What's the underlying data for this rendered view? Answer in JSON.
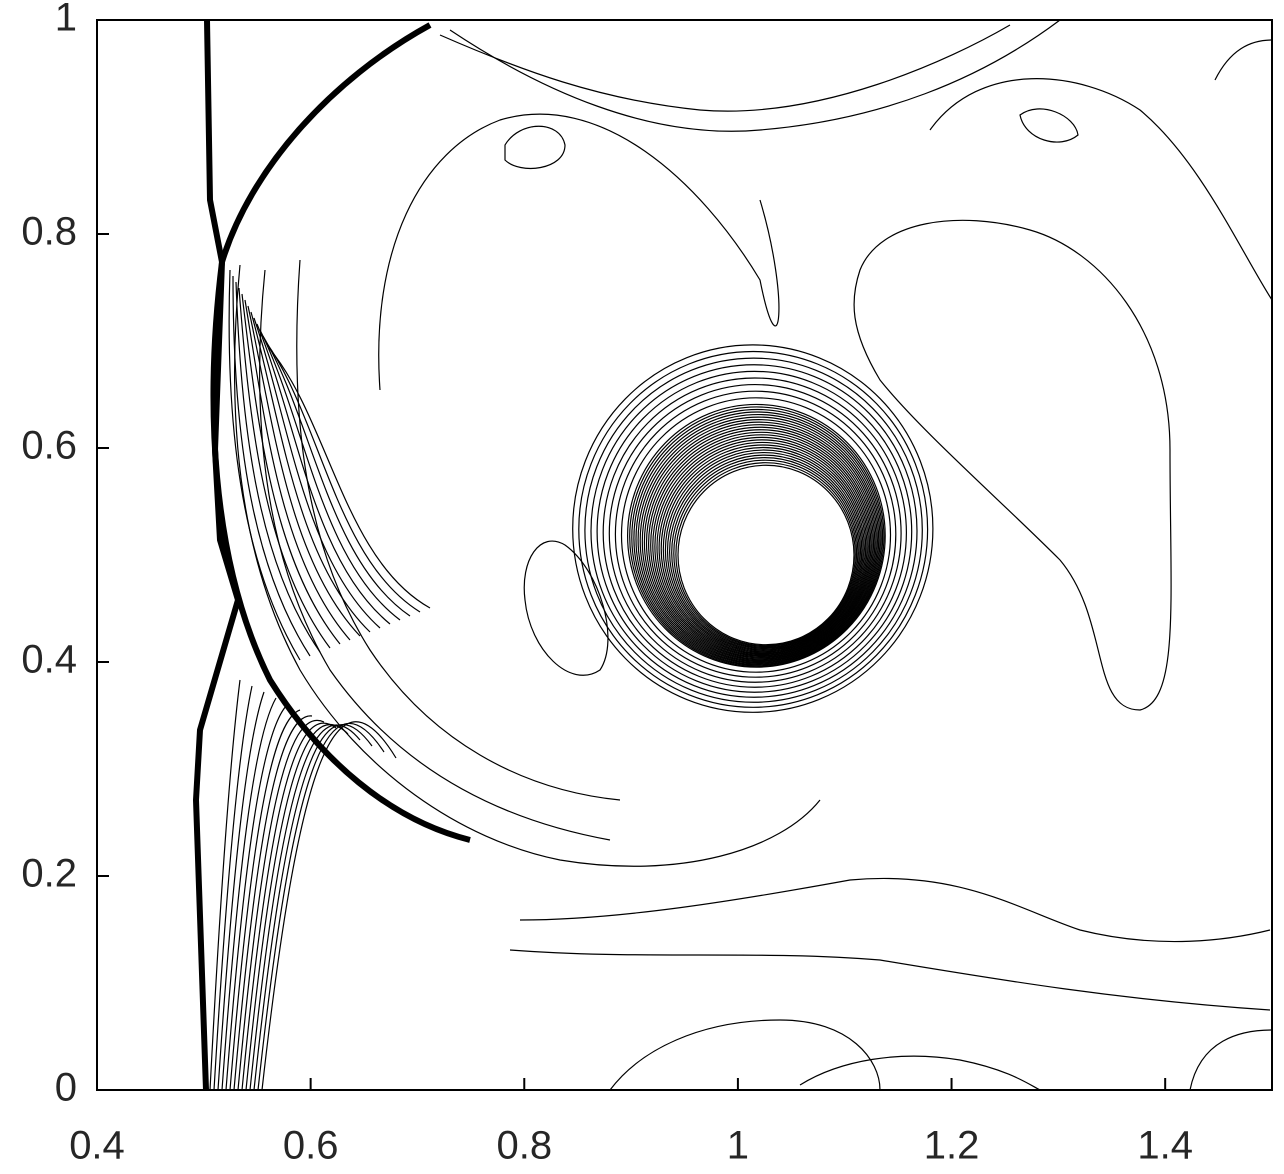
{
  "chart_data": {
    "type": "contour",
    "xlim": [
      0.4,
      1.5
    ],
    "xticks": [
      0.4,
      0.6,
      0.8,
      1,
      1.2,
      1.4
    ],
    "ylim": [
      0,
      1
    ],
    "yticks": [
      0,
      0.2,
      0.4,
      0.6,
      0.8,
      1
    ],
    "color": "#000000"
  }
}
